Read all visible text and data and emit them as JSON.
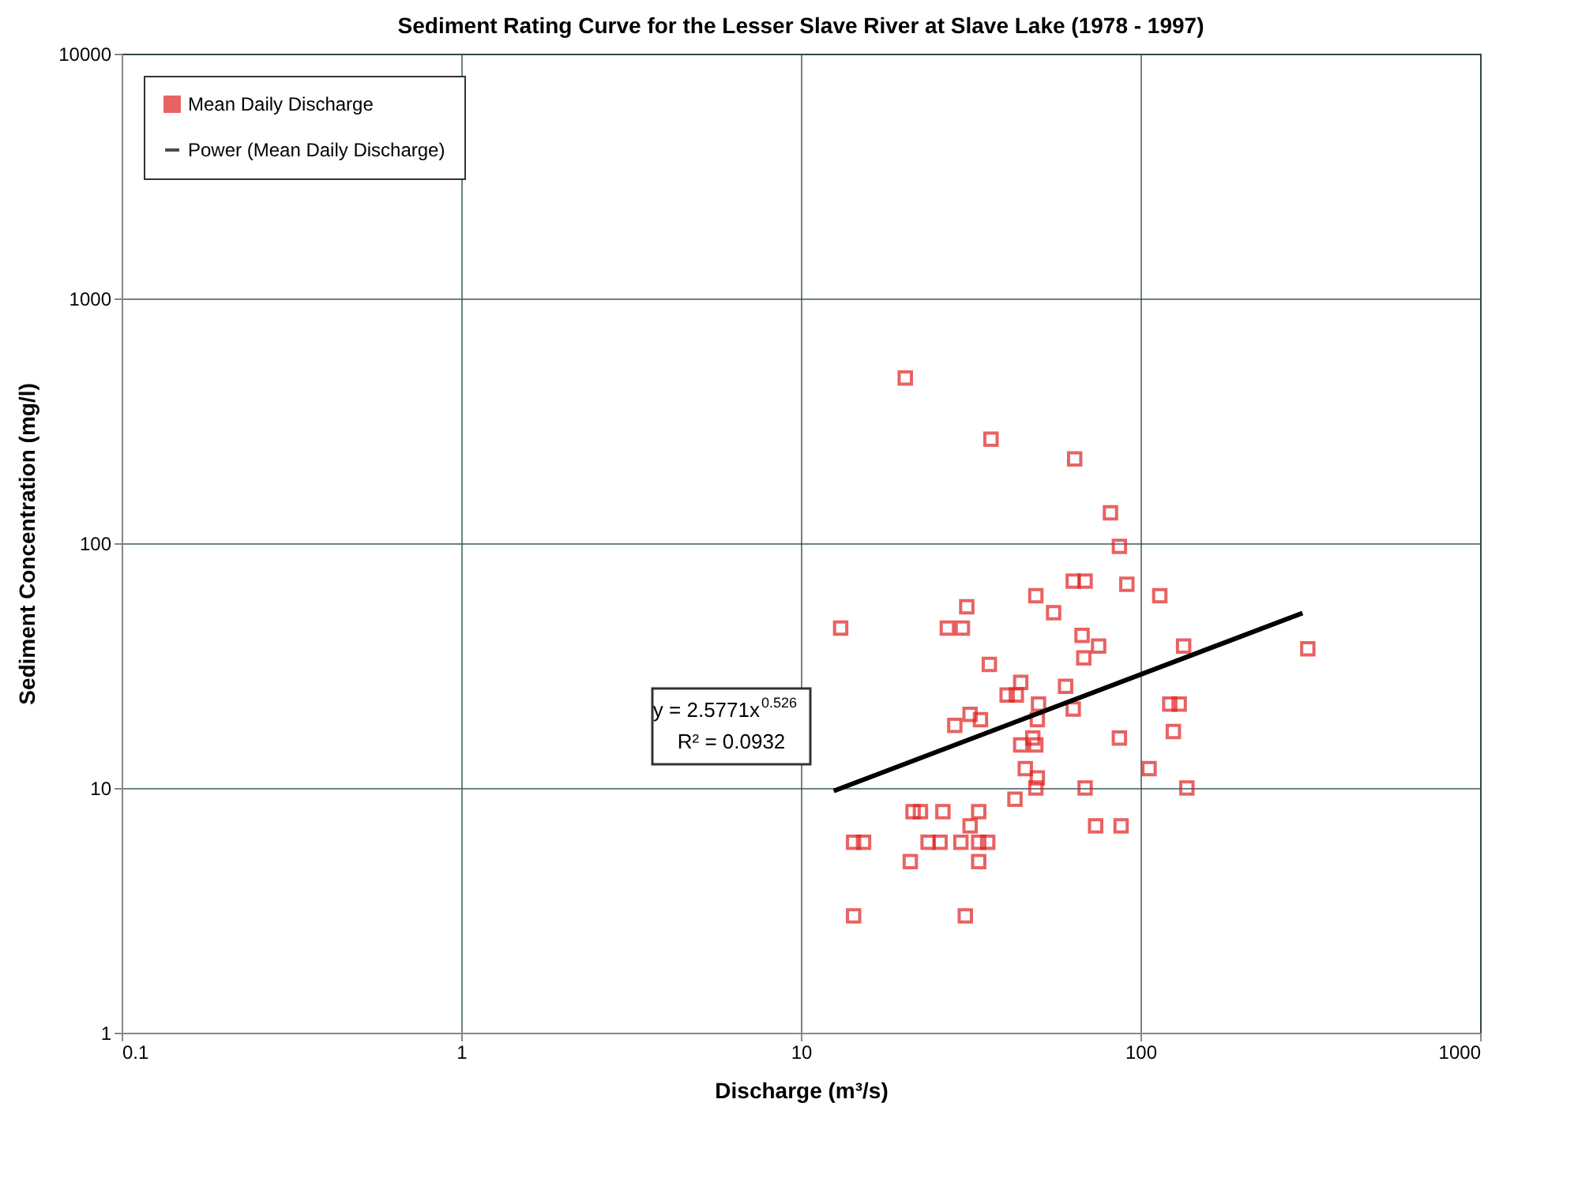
{
  "chart_data": {
    "type": "scatter",
    "title": "Sediment Rating Curve for the Lesser Slave River at Slave Lake (1978 - 1997)",
    "xlabel": "Discharge (m³/s)",
    "ylabel": "Sediment Concentration (mg/l)",
    "log": "xy",
    "xlim": [
      0.1,
      1000
    ],
    "ylim": [
      1,
      10000
    ],
    "xticks": [
      0.1,
      1,
      10,
      100,
      1000
    ],
    "yticks": [
      1,
      10,
      100,
      1000,
      10000
    ],
    "grid": true,
    "legend": "top left",
    "annotations": [
      "y = 2.5771x$^{0.526}$",
      "R² = 0.0932"
    ],
    "series": [
      {
        "name": "Mean Daily Discharge",
        "marker": "square",
        "color": "#e02020",
        "x": [
          20.3,
          36.3,
          64.0,
          81.6,
          86.7,
          63.4,
          68.7,
          91.2,
          49.2,
          114,
          30.8,
          55.5,
          13.1,
          27.0,
          29.9,
          67.3,
          75.3,
          134,
          311,
          68.1,
          35.9,
          44.4,
          40.5,
          43.1,
          60.2,
          50.1,
          63.4,
          31.5,
          33.8,
          28.4,
          49.7,
          122,
          130,
          48.2,
          86.7,
          44.4,
          49.2,
          125,
          45.8,
          49.7,
          106,
          49.2,
          68.7,
          137,
          42.7,
          21.4,
          22.5,
          26.2,
          33.4,
          31.5,
          73.8,
          87.7,
          14.3,
          15.3,
          23.7,
          25.7,
          29.6,
          33.4,
          35.5,
          21.0,
          33.4,
          14.3,
          30.5
        ],
        "values": [
          473,
          266,
          221,
          133,
          97,
          70,
          70,
          68,
          61,
          61,
          55,
          52,
          45,
          45,
          45,
          42,
          38,
          38,
          37,
          34,
          32,
          27,
          24,
          24,
          26,
          22,
          21,
          20,
          19,
          18,
          19,
          22,
          22,
          16,
          16,
          15,
          15,
          17,
          12,
          11,
          12,
          10,
          10,
          10,
          9,
          8,
          8,
          8,
          8,
          7,
          7,
          7,
          6,
          6,
          6,
          6,
          6,
          6,
          6,
          5,
          5,
          3,
          3
        ]
      },
      {
        "name": "Power (Mean Daily Discharge)",
        "type": "line",
        "color": "#000000",
        "line_style": "solid",
        "marker": "none",
        "x": [
          12.5,
          300
        ],
        "values": [
          9.73,
          51.8
        ]
      }
    ]
  }
}
